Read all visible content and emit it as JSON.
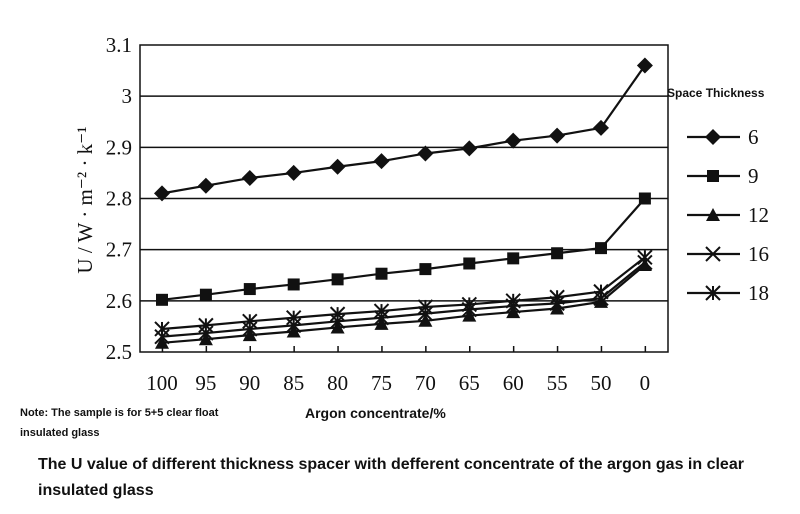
{
  "chart_data": {
    "type": "line",
    "title": "The U value of different thickness spacer with  defferent concentrate of the argon gas in clear insulated glass",
    "xlabel": "Argon concentrate/%",
    "ylabel": "U / W · m⁻² · k⁻¹",
    "note": "Note: The sample is for 5+5 clear float insulated glass",
    "legend_title": "Space Thickness",
    "legend_placement": "right",
    "categories": [
      "100",
      "95",
      "90",
      "85",
      "80",
      "75",
      "70",
      "65",
      "60",
      "55",
      "50",
      "0"
    ],
    "ylim": [
      2.5,
      3.1
    ],
    "yticks": [
      "2.5",
      "2.6",
      "2.7",
      "2.8",
      "2.9",
      "3",
      "3.1"
    ],
    "grid": "horizontal",
    "series": [
      {
        "name": "6",
        "marker": "diamond",
        "values": [
          2.81,
          2.825,
          2.84,
          2.85,
          2.862,
          2.873,
          2.888,
          2.898,
          2.913,
          2.923,
          2.938,
          3.06
        ]
      },
      {
        "name": "9",
        "marker": "square",
        "values": [
          2.602,
          2.612,
          2.623,
          2.632,
          2.642,
          2.653,
          2.662,
          2.673,
          2.683,
          2.693,
          2.703,
          2.8
        ]
      },
      {
        "name": "12",
        "marker": "triangle",
        "values": [
          2.518,
          2.525,
          2.533,
          2.54,
          2.548,
          2.555,
          2.561,
          2.571,
          2.578,
          2.585,
          2.598,
          2.67
        ]
      },
      {
        "name": "16",
        "marker": "x",
        "values": [
          2.53,
          2.537,
          2.545,
          2.552,
          2.56,
          2.567,
          2.575,
          2.583,
          2.59,
          2.595,
          2.605,
          2.675
        ]
      },
      {
        "name": "18",
        "marker": "asterisk",
        "values": [
          2.545,
          2.552,
          2.56,
          2.567,
          2.574,
          2.58,
          2.588,
          2.593,
          2.6,
          2.607,
          2.618,
          2.685
        ]
      }
    ]
  }
}
